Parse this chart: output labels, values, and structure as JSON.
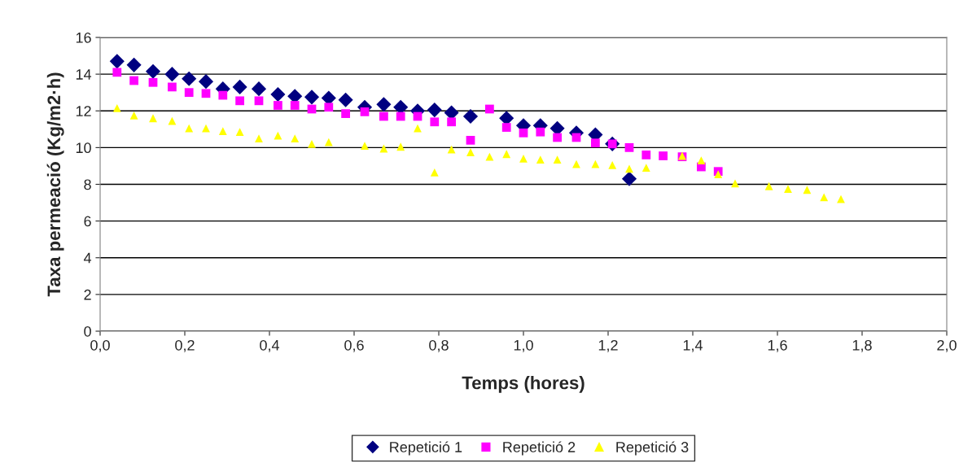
{
  "chart_data": {
    "type": "scatter",
    "xlabel": "Temps (hores)",
    "ylabel": "Taxa permeació (Kg/m2·h)",
    "xlim": [
      0,
      2
    ],
    "ylim": [
      0,
      16
    ],
    "xticks": [
      {
        "value": 0,
        "label": "0,0"
      },
      {
        "value": 0.2,
        "label": "0,2"
      },
      {
        "value": 0.4,
        "label": "0,4"
      },
      {
        "value": 0.6,
        "label": "0,6"
      },
      {
        "value": 0.8,
        "label": "0,8"
      },
      {
        "value": 1.0,
        "label": "1,0"
      },
      {
        "value": 1.2,
        "label": "1,2"
      },
      {
        "value": 1.4,
        "label": "1,4"
      },
      {
        "value": 1.6,
        "label": "1,6"
      },
      {
        "value": 1.8,
        "label": "1,8"
      },
      {
        "value": 2.0,
        "label": "2,0"
      }
    ],
    "yticks": [
      0,
      2,
      4,
      6,
      8,
      10,
      12,
      14,
      16
    ],
    "grid": "y",
    "legend": "bottom",
    "series": [
      {
        "name": "Repetició 1",
        "color": "#000080",
        "marker": "diamond",
        "x": [
          0.04,
          0.08,
          0.125,
          0.17,
          0.21,
          0.25,
          0.29,
          0.33,
          0.375,
          0.42,
          0.46,
          0.5,
          0.54,
          0.58,
          0.625,
          0.67,
          0.71,
          0.75,
          0.79,
          0.83,
          0.875,
          0.96,
          1.0,
          1.04,
          1.08,
          1.125,
          1.17,
          1.21,
          1.25
        ],
        "values": [
          14.7,
          14.5,
          14.15,
          14.0,
          13.75,
          13.6,
          13.2,
          13.3,
          13.2,
          12.9,
          12.8,
          12.75,
          12.7,
          12.6,
          12.2,
          12.35,
          12.2,
          12.0,
          12.05,
          11.9,
          11.7,
          11.6,
          11.2,
          11.2,
          11.05,
          10.8,
          10.7,
          10.2,
          8.3
        ]
      },
      {
        "name": "Repetició 2",
        "color": "#ff00ff",
        "marker": "square",
        "x": [
          0.04,
          0.08,
          0.125,
          0.17,
          0.21,
          0.25,
          0.29,
          0.33,
          0.375,
          0.42,
          0.46,
          0.5,
          0.54,
          0.58,
          0.625,
          0.67,
          0.71,
          0.75,
          0.79,
          0.83,
          0.875,
          0.92,
          0.96,
          1.0,
          1.04,
          1.08,
          1.125,
          1.17,
          1.21,
          1.25,
          1.29,
          1.33,
          1.375,
          1.42,
          1.46
        ],
        "values": [
          14.1,
          13.65,
          13.55,
          13.3,
          13.0,
          12.95,
          12.85,
          12.55,
          12.55,
          12.3,
          12.3,
          12.1,
          12.2,
          11.85,
          11.95,
          11.7,
          11.7,
          11.7,
          11.4,
          11.4,
          10.4,
          12.1,
          11.1,
          10.8,
          10.85,
          10.55,
          10.55,
          10.25,
          10.2,
          10.0,
          9.6,
          9.55,
          9.5,
          8.95,
          8.7
        ]
      },
      {
        "name": "Repetició 3",
        "color": "#ffff00",
        "marker": "triangle",
        "x": [
          0.04,
          0.08,
          0.125,
          0.17,
          0.21,
          0.25,
          0.29,
          0.33,
          0.375,
          0.42,
          0.46,
          0.5,
          0.54,
          0.625,
          0.67,
          0.71,
          0.75,
          0.79,
          0.83,
          0.875,
          0.92,
          0.96,
          1.0,
          1.04,
          1.08,
          1.125,
          1.17,
          1.21,
          1.25,
          1.29,
          1.375,
          1.42,
          1.46,
          1.5,
          1.58,
          1.625,
          1.67,
          1.71,
          1.75
        ],
        "values": [
          12.15,
          11.75,
          11.6,
          11.45,
          11.05,
          11.05,
          10.9,
          10.85,
          10.5,
          10.65,
          10.5,
          10.2,
          10.3,
          10.1,
          9.95,
          10.05,
          11.05,
          8.65,
          9.9,
          9.75,
          9.5,
          9.65,
          9.4,
          9.35,
          9.35,
          9.1,
          9.1,
          9.05,
          8.85,
          8.9,
          9.55,
          9.3,
          8.55,
          8.05,
          7.9,
          7.75,
          7.7,
          7.3,
          7.2
        ]
      }
    ]
  }
}
